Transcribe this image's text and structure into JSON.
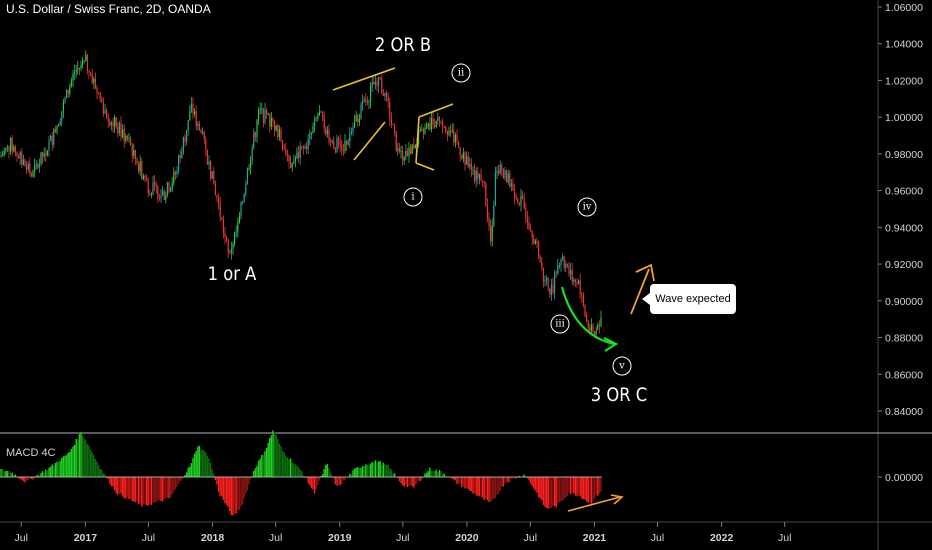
{
  "header": {
    "title": "U.S. Dollar / Swiss Franc, 2D, OANDA"
  },
  "indicator": {
    "title": "MACD 4C"
  },
  "annotations": {
    "wave_1_or_a": "1 or A",
    "wave_2_or_b": "2 OR B",
    "wave_3_or_c": "3 OR C",
    "sub_i": "i",
    "sub_ii": "ii",
    "sub_iii": "iii",
    "sub_iv": "iv",
    "sub_v": "v",
    "callout": "Wave expected"
  },
  "colors": {
    "up": "#26a69a",
    "up_bright": "#2ecc40",
    "down": "#e53935",
    "pattern_lines": "#e6c229",
    "green_arrow": "#19e019",
    "orange_arrow": "#f5a033",
    "axis_text": "#d1d4dc",
    "background": "#000000"
  },
  "chart_data": [
    {
      "type": "candlestick",
      "series": [
        {
          "name": "USDCHF",
          "points": [
            [
              "2016-04-01",
              0.972
            ],
            [
              "2016-06-01",
              0.985
            ],
            [
              "2016-08-01",
              0.968
            ],
            [
              "2016-10-01",
              0.99
            ],
            [
              "2016-12-01",
              1.025
            ],
            [
              "2017-01-03",
              1.03
            ],
            [
              "2017-03-01",
              1.002
            ],
            [
              "2017-05-01",
              0.988
            ],
            [
              "2017-07-01",
              0.962
            ],
            [
              "2017-08-15",
              0.958
            ],
            [
              "2017-09-15",
              0.968
            ],
            [
              "2017-11-01",
              1.005
            ],
            [
              "2017-12-01",
              0.99
            ],
            [
              "2018-01-15",
              0.955
            ],
            [
              "2018-02-15",
              0.925
            ],
            [
              "2018-03-15",
              0.94
            ],
            [
              "2018-04-15",
              0.975
            ],
            [
              "2018-05-15",
              1.003
            ],
            [
              "2018-07-01",
              0.995
            ],
            [
              "2018-08-15",
              0.975
            ],
            [
              "2018-10-01",
              0.985
            ],
            [
              "2018-11-01",
              1.002
            ],
            [
              "2018-12-15",
              0.985
            ],
            [
              "2019-01-15",
              0.985
            ],
            [
              "2019-03-01",
              1.003
            ],
            [
              "2019-04-20",
              1.022
            ],
            [
              "2019-05-20",
              1.005
            ],
            [
              "2019-06-20",
              0.978
            ],
            [
              "2019-08-01",
              0.985
            ],
            [
              "2019-09-15",
              0.995
            ],
            [
              "2019-10-15",
              1.0
            ],
            [
              "2019-11-20",
              0.99
            ],
            [
              "2020-01-01",
              0.975
            ],
            [
              "2020-02-20",
              0.962
            ],
            [
              "2020-03-10",
              0.93
            ],
            [
              "2020-03-25",
              0.975
            ],
            [
              "2020-05-01",
              0.965
            ],
            [
              "2020-06-15",
              0.95
            ],
            [
              "2020-07-20",
              0.93
            ],
            [
              "2020-08-10",
              0.91
            ],
            [
              "2020-09-01",
              0.906
            ],
            [
              "2020-09-25",
              0.925
            ],
            [
              "2020-10-20",
              0.915
            ],
            [
              "2020-11-15",
              0.91
            ],
            [
              "2020-12-10",
              0.888
            ],
            [
              "2020-12-30",
              0.88
            ],
            [
              "2021-01-12",
              0.888
            ],
            [
              "2021-01-22",
              0.892
            ]
          ]
        }
      ],
      "ylim": [
        0.825,
        1.065
      ],
      "xlim": [
        "2016-05-01",
        "2023-03-20"
      ],
      "x_ticks": [
        {
          "label": "Jul",
          "date": "2016-07-01"
        },
        {
          "label": "2017",
          "date": "2017-01-01"
        },
        {
          "label": "Jul",
          "date": "2017-07-01"
        },
        {
          "label": "2018",
          "date": "2018-01-01"
        },
        {
          "label": "Jul",
          "date": "2018-07-01"
        },
        {
          "label": "2019",
          "date": "2019-01-01"
        },
        {
          "label": "Jul",
          "date": "2019-07-01"
        },
        {
          "label": "2020",
          "date": "2020-01-01"
        },
        {
          "label": "Jul",
          "date": "2020-07-01"
        },
        {
          "label": "2021",
          "date": "2021-01-01"
        },
        {
          "label": "Jul",
          "date": "2021-07-01"
        },
        {
          "label": "2022",
          "date": "2022-01-01"
        },
        {
          "label": "Jul",
          "date": "2022-07-01"
        }
      ],
      "y_ticks": [
        "0.84000",
        "0.86000",
        "0.88000",
        "0.90000",
        "0.92000",
        "0.94000",
        "0.96000",
        "0.98000",
        "1.00000",
        "1.02000",
        "1.04000",
        "1.06000"
      ],
      "y_tick_values": [
        0.84,
        0.86,
        0.88,
        0.9,
        0.92,
        0.94,
        0.96,
        0.98,
        1.0,
        1.02,
        1.04,
        1.06
      ],
      "grid": false
    },
    {
      "type": "histogram",
      "title": "MACD 4C",
      "y_ticks": [
        "0.00000"
      ],
      "y_tick_values": [
        0
      ],
      "ylim": [
        -0.02,
        0.02
      ],
      "series": [
        {
          "name": "MACD 4C",
          "points": [
            [
              "2016-04-20",
              0.003
            ],
            [
              "2016-06-01",
              0.002
            ],
            [
              "2016-07-15",
              -0.002
            ],
            [
              "2016-09-15",
              0.003
            ],
            [
              "2016-11-15",
              0.009
            ],
            [
              "2016-12-20",
              0.017
            ],
            [
              "2017-01-10",
              0.012
            ],
            [
              "2017-02-15",
              0.003
            ],
            [
              "2017-04-01",
              -0.006
            ],
            [
              "2017-06-15",
              -0.011
            ],
            [
              "2017-09-01",
              -0.008
            ],
            [
              "2017-11-01",
              0.005
            ],
            [
              "2017-11-20",
              0.012
            ],
            [
              "2017-12-20",
              0.008
            ],
            [
              "2018-01-20",
              -0.006
            ],
            [
              "2018-03-01",
              -0.015
            ],
            [
              "2018-03-25",
              -0.011
            ],
            [
              "2018-05-01",
              0.003
            ],
            [
              "2018-06-01",
              0.01
            ],
            [
              "2018-06-25",
              0.018
            ],
            [
              "2018-07-20",
              0.01
            ],
            [
              "2018-09-15",
              0.002
            ],
            [
              "2018-10-20",
              -0.006
            ],
            [
              "2018-11-25",
              0.005
            ],
            [
              "2018-12-25",
              -0.004
            ],
            [
              "2019-02-15",
              0.003
            ],
            [
              "2019-03-20",
              0.005
            ],
            [
              "2019-04-20",
              0.006
            ],
            [
              "2019-05-20",
              0.004
            ],
            [
              "2019-07-01",
              -0.003
            ],
            [
              "2019-08-01",
              -0.004
            ],
            [
              "2019-09-15",
              0.003
            ],
            [
              "2019-10-20",
              0.002
            ],
            [
              "2019-12-01",
              -0.002
            ],
            [
              "2020-02-01",
              -0.007
            ],
            [
              "2020-03-10",
              -0.01
            ],
            [
              "2020-04-20",
              -0.002
            ],
            [
              "2020-06-15",
              0.001
            ],
            [
              "2020-07-15",
              -0.005
            ],
            [
              "2020-08-15",
              -0.012
            ],
            [
              "2020-09-15",
              -0.011
            ],
            [
              "2020-10-20",
              -0.006
            ],
            [
              "2020-11-20",
              -0.007
            ],
            [
              "2020-12-20",
              -0.01
            ],
            [
              "2021-01-22",
              -0.005
            ]
          ]
        }
      ]
    }
  ]
}
